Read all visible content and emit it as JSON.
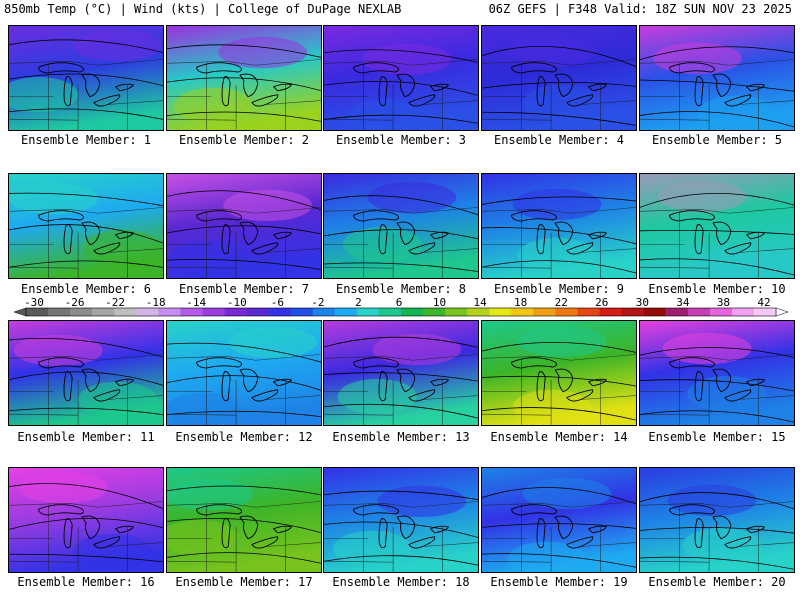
{
  "header": {
    "left": "850mb Temp (°C) | Wind (kts) | College of DuPage NEXLAB",
    "right": "06Z GEFS | F348 Valid: 18Z SUN NOV 23 2025"
  },
  "colorbar": {
    "ticks": [
      "-30",
      "-26",
      "-22",
      "-18",
      "-14",
      "-10",
      "-6",
      "-2",
      "2",
      "6",
      "10",
      "14",
      "18",
      "22",
      "26",
      "30",
      "34",
      "38",
      "42"
    ],
    "colors": [
      "#5a5a5a",
      "#737373",
      "#8c8c8c",
      "#a5a5a5",
      "#bebebe",
      "#d2b4e6",
      "#c88cf0",
      "#b45aeb",
      "#9b3cdc",
      "#7828d2",
      "#5a28d2",
      "#3232e6",
      "#1e50e6",
      "#1e82e6",
      "#1eaaf0",
      "#28d2c8",
      "#1ec88c",
      "#14b450",
      "#3cb428",
      "#78c31e",
      "#b4d21e",
      "#e6e614",
      "#f0c814",
      "#f0a014",
      "#f07814",
      "#e64614",
      "#d21e14",
      "#b41414",
      "#960a0a",
      "#a01e6e",
      "#c83cb4",
      "#e664dc",
      "#f0a0f0",
      "#f5c8f5"
    ]
  },
  "panels": [
    {
      "label": "Ensemble Member: 1",
      "base": "#2d3ce0",
      "top": "#6a2ee0",
      "bottom": "#1ec8a0"
    },
    {
      "label": "Ensemble Member: 2",
      "base": "#28c8c8",
      "top": "#9b30e0",
      "bottom": "#9ad21e"
    },
    {
      "label": "Ensemble Member: 3",
      "base": "#3a2ae0",
      "top": "#7a2ae0",
      "bottom": "#2a50e6"
    },
    {
      "label": "Ensemble Member: 4",
      "base": "#2e2ad8",
      "top": "#4b2ae0",
      "bottom": "#2a50e6"
    },
    {
      "label": "Ensemble Member: 5",
      "base": "#2a50e6",
      "top": "#c83cdc",
      "bottom": "#1ea0f0"
    },
    {
      "label": "Ensemble Member: 6",
      "base": "#1eaaf0",
      "top": "#28d2c8",
      "bottom": "#3cb428"
    },
    {
      "label": "Ensemble Member: 7",
      "base": "#5a28d2",
      "top": "#c850e6",
      "bottom": "#3232e6"
    },
    {
      "label": "Ensemble Member: 8",
      "base": "#1e82e6",
      "top": "#3a2ae0",
      "bottom": "#1ec88c"
    },
    {
      "label": "Ensemble Member: 9",
      "base": "#1e82e6",
      "top": "#3232e6",
      "bottom": "#28d2c8"
    },
    {
      "label": "Ensemble Member: 10",
      "base": "#1ec8a0",
      "top": "#9a9ab8",
      "bottom": "#28c8c8"
    },
    {
      "label": "Ensemble Member: 11",
      "base": "#3232e6",
      "top": "#c83cdc",
      "bottom": "#1ec88c"
    },
    {
      "label": "Ensemble Member: 12",
      "base": "#1eaaf0",
      "top": "#28d2c8",
      "bottom": "#1e82e6"
    },
    {
      "label": "Ensemble Member: 13",
      "base": "#3a2ae0",
      "top": "#b43cdc",
      "bottom": "#28d2a0"
    },
    {
      "label": "Ensemble Member: 14",
      "base": "#3cb428",
      "top": "#1ec88c",
      "bottom": "#e0e014"
    },
    {
      "label": "Ensemble Member: 15",
      "base": "#3232e6",
      "top": "#e640dc",
      "bottom": "#1e82e6"
    },
    {
      "label": "Ensemble Member: 16",
      "base": "#9a3ce0",
      "top": "#e640e6",
      "bottom": "#3232e6"
    },
    {
      "label": "Ensemble Member: 17",
      "base": "#3cb428",
      "top": "#1ec88c",
      "bottom": "#78c31e"
    },
    {
      "label": "Ensemble Member: 18",
      "base": "#1e82e6",
      "top": "#3232e6",
      "bottom": "#28d2c8"
    },
    {
      "label": "Ensemble Member: 19",
      "base": "#3232e6",
      "top": "#1e82e6",
      "bottom": "#1eaaf0"
    },
    {
      "label": "Ensemble Member: 20",
      "base": "#1e82e6",
      "top": "#2a3ce0",
      "bottom": "#28d2c8"
    }
  ]
}
